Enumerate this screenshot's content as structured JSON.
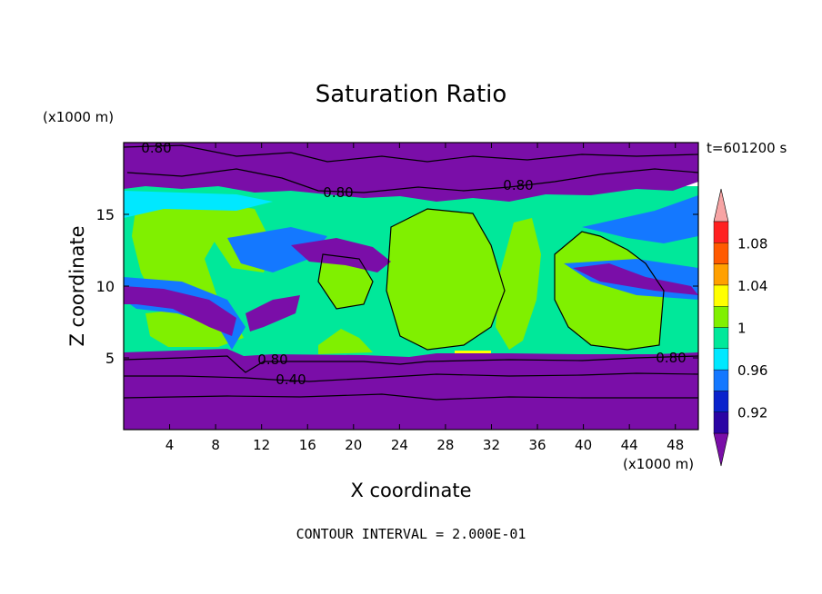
{
  "chart_data": {
    "type": "heatmap",
    "title": "Saturation Ratio",
    "xlabel": "X coordinate",
    "ylabel": "Z coordinate",
    "x_unit_label": "(x1000 m)",
    "y_unit_label": "(x1000 m)",
    "time_label": "t=601200 s",
    "footer": "CONTOUR INTERVAL = 2.000E-01",
    "xlim": [
      0,
      50
    ],
    "ylim": [
      0,
      20
    ],
    "x_ticks": [
      4,
      8,
      12,
      16,
      20,
      24,
      28,
      32,
      36,
      40,
      44,
      48
    ],
    "y_ticks": [
      5,
      10,
      15
    ],
    "colorbar": {
      "levels": [
        0.9,
        0.92,
        0.94,
        0.96,
        0.98,
        1.0,
        1.02,
        1.04,
        1.06,
        1.08,
        1.1
      ],
      "tick_labels": [
        "0.92",
        "0.96",
        "1",
        "1.04",
        "1.08"
      ],
      "colors": [
        "#7a0ea8",
        "#2a04a4",
        "#0a22cc",
        "#1478ff",
        "#00e8ff",
        "#00e89a",
        "#80f000",
        "#ffff00",
        "#ffa000",
        "#ff5a00",
        "#ff2020",
        "#f7a4a4"
      ]
    },
    "contour_labels": [
      "0.80",
      "0.80",
      "0.80",
      "0.80",
      "0.80",
      "0.40"
    ],
    "fields": {
      "upper_dry_layer": {
        "z_range": [
          18,
          20
        ],
        "value": 0.8
      },
      "lower_dry_layer": {
        "z_range": [
          0,
          5
        ],
        "value": 0.4
      },
      "saturated_band": {
        "z_range": [
          5,
          17
        ],
        "value": 1.0
      }
    }
  }
}
